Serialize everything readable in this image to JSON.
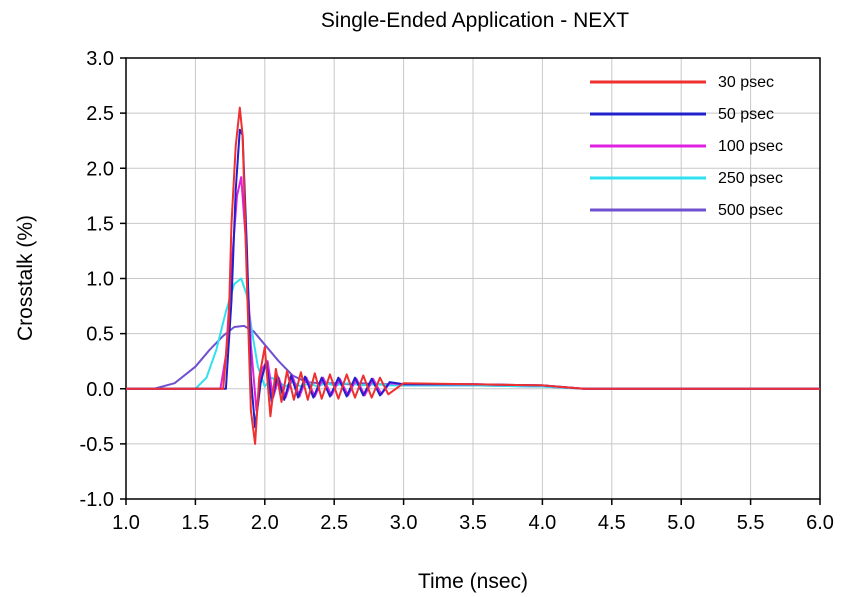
{
  "chart_data": {
    "type": "line",
    "title": "Single-Ended Application - NEXT",
    "xlabel": "Time (nsec)",
    "ylabel": "Crosstalk (%)",
    "xlim": [
      1.0,
      6.0
    ],
    "ylim": [
      -1.0,
      3.0
    ],
    "x_ticks": [
      "1.0",
      "1.5",
      "2.0",
      "2.5",
      "3.0",
      "3.5",
      "4.0",
      "4.5",
      "5.0",
      "5.5",
      "6.0"
    ],
    "y_ticks": [
      "3.0",
      "2.5",
      "2.0",
      "1.5",
      "1.0",
      "0.5",
      "0.0",
      "-0.5",
      "-1.0"
    ],
    "grid": true,
    "legend_position": "top-right",
    "series": [
      {
        "name": "30 psec",
        "color": "#ee3030",
        "x": [
          1.0,
          1.7,
          1.74,
          1.76,
          1.79,
          1.82,
          1.84,
          1.87,
          1.9,
          1.93,
          1.96,
          2.0,
          2.04,
          2.08,
          2.12,
          2.16,
          2.21,
          2.26,
          2.31,
          2.36,
          2.41,
          2.47,
          2.53,
          2.59,
          2.65,
          2.71,
          2.77,
          2.83,
          2.89,
          3.0,
          3.5,
          4.0,
          4.3,
          6.0
        ],
        "y": [
          0.0,
          0.0,
          0.6,
          1.5,
          2.2,
          2.55,
          2.3,
          1.0,
          -0.2,
          -0.5,
          0.1,
          0.38,
          -0.25,
          0.18,
          -0.12,
          0.16,
          -0.1,
          0.15,
          -0.1,
          0.14,
          -0.09,
          0.13,
          -0.09,
          0.13,
          -0.08,
          0.12,
          -0.08,
          0.1,
          -0.05,
          0.05,
          0.04,
          0.03,
          0.0,
          0.0
        ]
      },
      {
        "name": "50 psec",
        "color": "#2020cc",
        "x": [
          1.0,
          1.72,
          1.76,
          1.79,
          1.82,
          1.84,
          1.87,
          1.9,
          1.93,
          1.97,
          2.01,
          2.05,
          2.09,
          2.14,
          2.19,
          2.24,
          2.29,
          2.35,
          2.41,
          2.47,
          2.53,
          2.59,
          2.65,
          2.71,
          2.77,
          2.83,
          2.9,
          3.0,
          3.5,
          4.0,
          4.3,
          6.0
        ],
        "y": [
          0.0,
          0.0,
          0.8,
          1.8,
          2.35,
          2.3,
          1.3,
          0.1,
          -0.35,
          0.05,
          0.25,
          -0.12,
          0.12,
          -0.1,
          0.12,
          -0.08,
          0.11,
          -0.08,
          0.1,
          -0.07,
          0.1,
          -0.07,
          0.1,
          -0.06,
          0.09,
          -0.06,
          0.06,
          0.04,
          0.04,
          0.03,
          0.0,
          0.0
        ]
      },
      {
        "name": "100 psec",
        "color": "#e020e0",
        "x": [
          1.0,
          1.68,
          1.72,
          1.76,
          1.8,
          1.83,
          1.86,
          1.9,
          1.94,
          1.98,
          2.02,
          2.06,
          2.1,
          2.15,
          2.2,
          2.25,
          2.3,
          2.36,
          2.42,
          2.48,
          2.54,
          2.6,
          2.66,
          2.72,
          2.78,
          2.84,
          2.9,
          3.0,
          3.5,
          4.0,
          4.3,
          6.0
        ],
        "y": [
          0.0,
          0.0,
          0.3,
          1.1,
          1.75,
          1.92,
          1.4,
          0.4,
          -0.2,
          0.18,
          0.25,
          -0.08,
          0.1,
          -0.08,
          0.11,
          -0.07,
          0.1,
          -0.07,
          0.1,
          -0.06,
          0.09,
          -0.06,
          0.09,
          -0.06,
          0.09,
          -0.05,
          0.05,
          0.04,
          0.04,
          0.03,
          0.0,
          0.0
        ]
      },
      {
        "name": "250 psec",
        "color": "#30e0f0",
        "x": [
          1.0,
          1.5,
          1.58,
          1.65,
          1.72,
          1.78,
          1.83,
          1.87,
          1.91,
          1.95,
          2.0,
          2.05,
          2.1,
          2.15,
          2.2,
          2.26,
          2.32,
          2.38,
          2.44,
          2.5,
          2.6,
          2.7,
          2.8,
          2.9,
          3.0,
          3.5,
          4.0,
          4.3,
          6.0
        ],
        "y": [
          0.0,
          0.0,
          0.1,
          0.35,
          0.7,
          0.95,
          1.0,
          0.85,
          0.5,
          0.2,
          0.02,
          0.1,
          0.06,
          0.02,
          0.06,
          0.02,
          0.05,
          0.02,
          0.05,
          0.03,
          0.05,
          0.03,
          0.04,
          0.03,
          0.03,
          0.03,
          0.02,
          0.0,
          0.0
        ]
      },
      {
        "name": "500 psec",
        "color": "#7050d0",
        "x": [
          1.0,
          1.2,
          1.35,
          1.5,
          1.6,
          1.7,
          1.78,
          1.85,
          1.92,
          2.0,
          2.1,
          2.2,
          2.3,
          2.4,
          2.5,
          2.6,
          2.7,
          2.8,
          2.9,
          3.0,
          3.5,
          4.0,
          4.3,
          6.0
        ],
        "y": [
          0.0,
          0.0,
          0.05,
          0.2,
          0.35,
          0.48,
          0.56,
          0.57,
          0.52,
          0.4,
          0.25,
          0.12,
          0.06,
          0.05,
          0.05,
          0.04,
          0.05,
          0.04,
          0.04,
          0.03,
          0.03,
          0.02,
          0.0,
          0.0
        ]
      }
    ]
  }
}
